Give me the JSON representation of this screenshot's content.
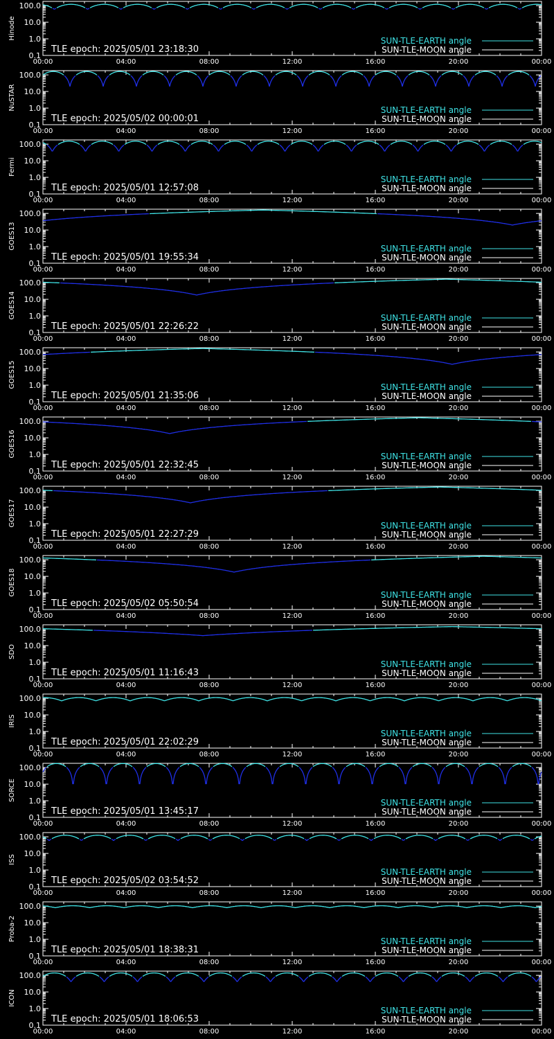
{
  "colors": {
    "background": "#000000",
    "axes": "#ffffff",
    "earth_series": "#3fe3e6",
    "moon_series": "#ffffff",
    "dip_series": "#1f2fe8"
  },
  "x_tick_labels": [
    "00:00",
    "04:00",
    "08:00",
    "12:00",
    "16:00",
    "20:00",
    "00:00"
  ],
  "y_tick_labels": [
    "100.0",
    "10.0",
    "1.0",
    "0.1"
  ],
  "legend": {
    "earth_label": "SUN-TLE-EARTH angle",
    "moon_label": "SUN-TLE-MOON angle"
  },
  "chart_data": [
    {
      "type": "line",
      "ylabel": "Hinode",
      "annotation": "TLE epoch: 2025/05/01 23:18:30",
      "xlim": [
        0,
        24
      ],
      "ylim": [
        0.1,
        180
      ],
      "y_scale": "log",
      "grid": false,
      "legend_placement": "bottom-right",
      "pattern": {
        "kind": "periodic",
        "period_h": 1.6,
        "phase_h": 0.55,
        "min": 60,
        "max": 120
      },
      "series": [
        {
          "name": "SUN-TLE-EARTH angle",
          "values": "peaks 120, troughs 60, period 1.6 h"
        },
        {
          "name": "SUN-TLE-MOON angle",
          "values": []
        }
      ]
    },
    {
      "type": "line",
      "ylabel": "NuSTAR",
      "annotation": "TLE epoch: 2025/05/02 00:00:01",
      "xlim": [
        0,
        24
      ],
      "ylim": [
        0.1,
        180
      ],
      "y_scale": "log",
      "grid": false,
      "legend_placement": "bottom-right",
      "pattern": {
        "kind": "periodic",
        "period_h": 1.6,
        "phase_h": 1.3,
        "min": 20,
        "max": 160
      },
      "series": [
        {
          "name": "SUN-TLE-EARTH angle",
          "values": "peaks 160, troughs 20, period 1.6 h"
        },
        {
          "name": "SUN-TLE-MOON angle",
          "values": []
        }
      ]
    },
    {
      "type": "line",
      "ylabel": "Fermi",
      "annotation": "TLE epoch: 2025/05/01 12:57:08",
      "xlim": [
        0,
        24
      ],
      "ylim": [
        0.1,
        180
      ],
      "y_scale": "log",
      "grid": false,
      "legend_placement": "bottom-right",
      "pattern": {
        "kind": "periodic",
        "period_h": 1.6,
        "phase_h": 0.45,
        "min": 35,
        "max": 150
      },
      "series": [
        {
          "name": "SUN-TLE-EARTH angle",
          "values": "peaks 150, troughs 35, period 1.6 h"
        },
        {
          "name": "SUN-TLE-MOON angle",
          "values": []
        }
      ]
    },
    {
      "type": "line",
      "ylabel": "GOES13",
      "annotation": "TLE epoch: 2025/05/01 19:55:34",
      "xlim": [
        0,
        24
      ],
      "ylim": [
        0.1,
        180
      ],
      "y_scale": "log",
      "grid": false,
      "legend_placement": "bottom-right",
      "pattern": {
        "kind": "daily",
        "min_time_h": 22.6,
        "min": 20,
        "max": 160
      },
      "series": [
        {
          "name": "SUN-TLE-EARTH angle",
          "values": "daily cycle, minimum 20 near 22:40, maximum 160"
        },
        {
          "name": "SUN-TLE-MOON angle",
          "values": []
        }
      ]
    },
    {
      "type": "line",
      "ylabel": "GOES14",
      "annotation": "TLE epoch: 2025/05/01 22:26:22",
      "xlim": [
        0,
        24
      ],
      "ylim": [
        0.1,
        180
      ],
      "y_scale": "log",
      "grid": false,
      "legend_placement": "bottom-right",
      "pattern": {
        "kind": "daily",
        "min_time_h": 7.4,
        "min": 18,
        "max": 162
      },
      "series": [
        {
          "name": "SUN-TLE-EARTH angle",
          "values": "daily cycle, minimum 18 near 07:25, maximum 162"
        },
        {
          "name": "SUN-TLE-MOON angle",
          "values": []
        }
      ]
    },
    {
      "type": "line",
      "ylabel": "GOES15",
      "annotation": "TLE epoch: 2025/05/01 21:35:06",
      "xlim": [
        0,
        24
      ],
      "ylim": [
        0.1,
        180
      ],
      "y_scale": "log",
      "grid": false,
      "legend_placement": "bottom-right",
      "pattern": {
        "kind": "daily",
        "min_time_h": 19.7,
        "min": 18,
        "max": 162
      },
      "series": [
        {
          "name": "SUN-TLE-EARTH angle",
          "values": "daily cycle, minimum 18 near 19:40, maximum 162"
        },
        {
          "name": "SUN-TLE-MOON angle",
          "values": []
        }
      ]
    },
    {
      "type": "line",
      "ylabel": "GOES16",
      "annotation": "TLE epoch: 2025/05/01 22:32:45",
      "xlim": [
        0,
        24
      ],
      "ylim": [
        0.1,
        180
      ],
      "y_scale": "log",
      "grid": false,
      "legend_placement": "bottom-right",
      "pattern": {
        "kind": "daily",
        "min_time_h": 6.1,
        "min": 18,
        "max": 162
      },
      "series": [
        {
          "name": "SUN-TLE-EARTH angle",
          "values": "daily cycle, minimum 18 near 06:05, maximum 162"
        },
        {
          "name": "SUN-TLE-MOON angle",
          "values": []
        }
      ]
    },
    {
      "type": "line",
      "ylabel": "GOES17",
      "annotation": "TLE epoch: 2025/05/01 22:27:29",
      "xlim": [
        0,
        24
      ],
      "ylim": [
        0.1,
        180
      ],
      "y_scale": "log",
      "grid": false,
      "legend_placement": "bottom-right",
      "pattern": {
        "kind": "daily",
        "min_time_h": 7.1,
        "min": 18,
        "max": 162
      },
      "series": [
        {
          "name": "SUN-TLE-EARTH angle",
          "values": "daily cycle, minimum 18 near 07:05, maximum 162"
        },
        {
          "name": "SUN-TLE-MOON angle",
          "values": []
        }
      ]
    },
    {
      "type": "line",
      "ylabel": "GOES18",
      "annotation": "TLE epoch: 2025/05/02 05:50:54",
      "xlim": [
        0,
        24
      ],
      "ylim": [
        0.1,
        180
      ],
      "y_scale": "log",
      "grid": false,
      "legend_placement": "bottom-right",
      "pattern": {
        "kind": "daily",
        "min_time_h": 9.2,
        "min": 18,
        "max": 162
      },
      "series": [
        {
          "name": "SUN-TLE-EARTH angle",
          "values": "daily cycle, minimum 18 near 09:10, maximum 162"
        },
        {
          "name": "SUN-TLE-MOON angle",
          "values": []
        }
      ]
    },
    {
      "type": "line",
      "ylabel": "SDO",
      "annotation": "TLE epoch: 2025/05/01 11:16:43",
      "xlim": [
        0,
        24
      ],
      "ylim": [
        0.1,
        180
      ],
      "y_scale": "log",
      "grid": false,
      "legend_placement": "bottom-right",
      "pattern": {
        "kind": "daily",
        "min_time_h": 7.7,
        "min": 40,
        "max": 140
      },
      "series": [
        {
          "name": "SUN-TLE-EARTH angle",
          "values": "daily cycle, minimum 40 near 07:40, maximum 140"
        },
        {
          "name": "SUN-TLE-MOON angle",
          "values": []
        }
      ]
    },
    {
      "type": "line",
      "ylabel": "IRIS",
      "annotation": "TLE epoch: 2025/05/01 22:02:29",
      "xlim": [
        0,
        24
      ],
      "ylim": [
        0.1,
        180
      ],
      "y_scale": "log",
      "grid": false,
      "legend_placement": "bottom-right",
      "pattern": {
        "kind": "periodic",
        "period_h": 1.65,
        "phase_h": 0.9,
        "min": 70,
        "max": 110
      },
      "series": [
        {
          "name": "SUN-TLE-EARTH angle",
          "values": "peaks 110, troughs 70, period 1.65 h"
        },
        {
          "name": "SUN-TLE-MOON angle",
          "values": []
        }
      ]
    },
    {
      "type": "line",
      "ylabel": "SORCE",
      "annotation": "TLE epoch: 2025/05/01 13:45:17",
      "xlim": [
        0,
        24
      ],
      "ylim": [
        0.1,
        180
      ],
      "y_scale": "log",
      "grid": false,
      "legend_placement": "bottom-right",
      "pattern": {
        "kind": "periodic",
        "period_h": 1.6,
        "phase_h": 1.45,
        "min": 5,
        "max": 175
      },
      "series": [
        {
          "name": "SUN-TLE-EARTH angle",
          "values": "peaks 175, troughs 5, period 1.6 h"
        },
        {
          "name": "SUN-TLE-MOON angle",
          "values": []
        }
      ]
    },
    {
      "type": "line",
      "ylabel": "ISS",
      "annotation": "TLE epoch: 2025/05/02 03:54:52",
      "xlim": [
        0,
        24
      ],
      "ylim": [
        0.1,
        180
      ],
      "y_scale": "log",
      "grid": false,
      "legend_placement": "bottom-right",
      "pattern": {
        "kind": "periodic",
        "period_h": 1.55,
        "phase_h": 0.3,
        "min": 60,
        "max": 125
      },
      "series": [
        {
          "name": "SUN-TLE-EARTH angle",
          "values": "peaks 125, troughs 60, period 1.55 h"
        },
        {
          "name": "SUN-TLE-MOON angle",
          "values": []
        }
      ]
    },
    {
      "type": "line",
      "ylabel": "Proba-2",
      "annotation": "TLE epoch: 2025/05/01 18:38:31",
      "xlim": [
        0,
        24
      ],
      "ylim": [
        0.1,
        180
      ],
      "y_scale": "log",
      "grid": false,
      "legend_placement": "bottom-right",
      "pattern": {
        "kind": "periodic",
        "period_h": 1.65,
        "phase_h": 0.6,
        "min": 80,
        "max": 105
      },
      "series": [
        {
          "name": "SUN-TLE-EARTH angle",
          "values": "peaks 105, troughs 80, period 1.65 h"
        },
        {
          "name": "SUN-TLE-MOON angle",
          "values": []
        }
      ]
    },
    {
      "type": "line",
      "ylabel": "ICON",
      "annotation": "TLE epoch: 2025/05/01 18:06:53",
      "xlim": [
        0,
        24
      ],
      "ylim": [
        0.1,
        180
      ],
      "y_scale": "log",
      "grid": false,
      "legend_placement": "bottom-right",
      "pattern": {
        "kind": "periodic",
        "period_h": 1.6,
        "phase_h": 1.35,
        "min": 40,
        "max": 140
      },
      "series": [
        {
          "name": "SUN-TLE-EARTH angle",
          "values": "peaks 140, troughs 40, period 1.6 h"
        },
        {
          "name": "SUN-TLE-MOON angle",
          "values": []
        }
      ]
    }
  ]
}
